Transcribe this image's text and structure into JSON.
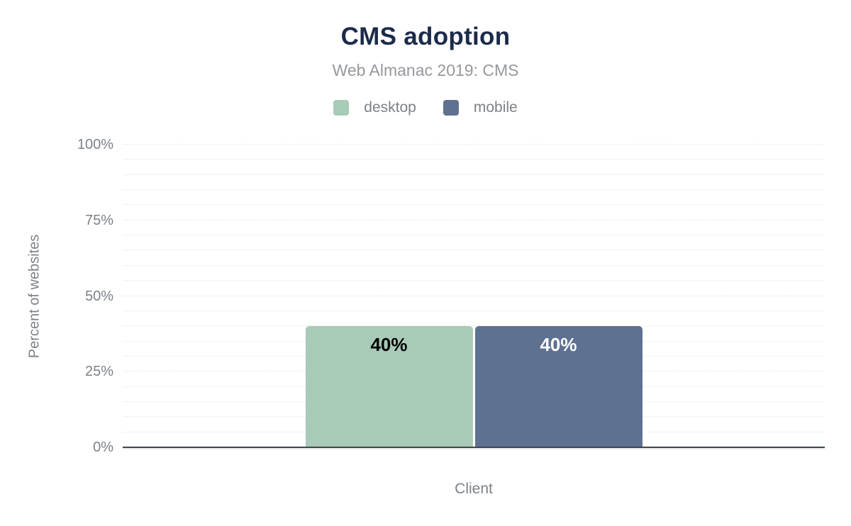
{
  "chart_data": {
    "type": "bar",
    "title": "CMS adoption",
    "subtitle": "Web Almanac 2019: CMS",
    "categories": [
      "Client"
    ],
    "series": [
      {
        "name": "desktop",
        "values": [
          40
        ],
        "color": "#a8cbb8",
        "label_color": "#000000"
      },
      {
        "name": "mobile",
        "values": [
          40
        ],
        "color": "#5f7191",
        "label_color": "#ffffff"
      }
    ],
    "bar_labels": [
      "40%",
      "40%"
    ],
    "xlabel": "Client",
    "ylabel": "Percent of websites",
    "ylim": [
      0,
      100
    ],
    "yticks": [
      {
        "value": 0,
        "label": "0%"
      },
      {
        "value": 25,
        "label": "25%"
      },
      {
        "value": 50,
        "label": "50%"
      },
      {
        "value": 75,
        "label": "75%"
      },
      {
        "value": 100,
        "label": "100%"
      }
    ],
    "grid": true,
    "grid_step_minor": 5,
    "grid_step_major": 25,
    "legend_position": "top"
  },
  "colors": {
    "title": "#1b2b4a",
    "subtitle": "#95999d",
    "axis_text": "#7b8288",
    "grid_minor": "#f2f2f2",
    "grid_major": "#eaeaea",
    "axis_line": "#3e484e"
  }
}
